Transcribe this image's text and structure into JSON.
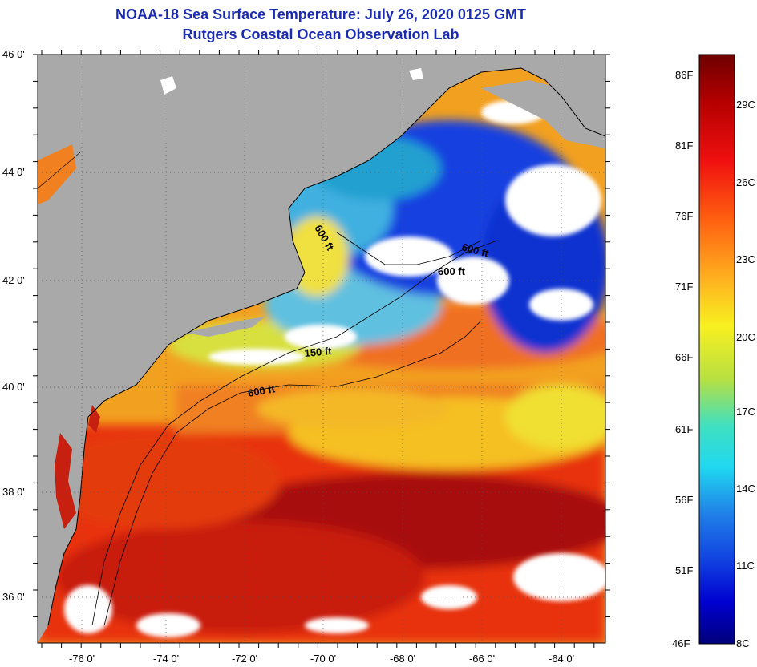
{
  "title": {
    "line1": "NOAA-18 Sea Surface Temperature:  July 26, 2020 0125 GMT",
    "line2": "Rutgers Coastal Ocean Observation Lab"
  },
  "axes": {
    "lat_labels": [
      "46 0'",
      "44 0'",
      "42 0'",
      "40 0'",
      "38 0'",
      "36 0'"
    ],
    "lon_labels": [
      "-76 0'",
      "-74 0'",
      "-72 0'",
      "-70 0'",
      "-68 0'",
      "-66 0'",
      "-64 0'"
    ]
  },
  "contour_labels": [
    {
      "text": "600 ft",
      "angle": 60
    },
    {
      "text": "600 ft",
      "angle": 15
    },
    {
      "text": "600 ft",
      "angle": 0
    },
    {
      "text": "150 ft",
      "angle": -5
    },
    {
      "text": "600 ft",
      "angle": -10
    }
  ],
  "colorbar": {
    "fahrenheit_labels": [
      "86F",
      "81F",
      "76F",
      "71F",
      "66F",
      "61F",
      "56F",
      "51F",
      "46F"
    ],
    "celsius_labels": [
      "29C",
      "26C",
      "23C",
      "20C",
      "17C",
      "14C",
      "11C",
      "8C"
    ]
  },
  "colors": {
    "title": "#1a2bb0",
    "land": "#a9a9a9",
    "cloud": "#ffffff",
    "warmest": "#7a0000",
    "coldest": "#00007a"
  }
}
